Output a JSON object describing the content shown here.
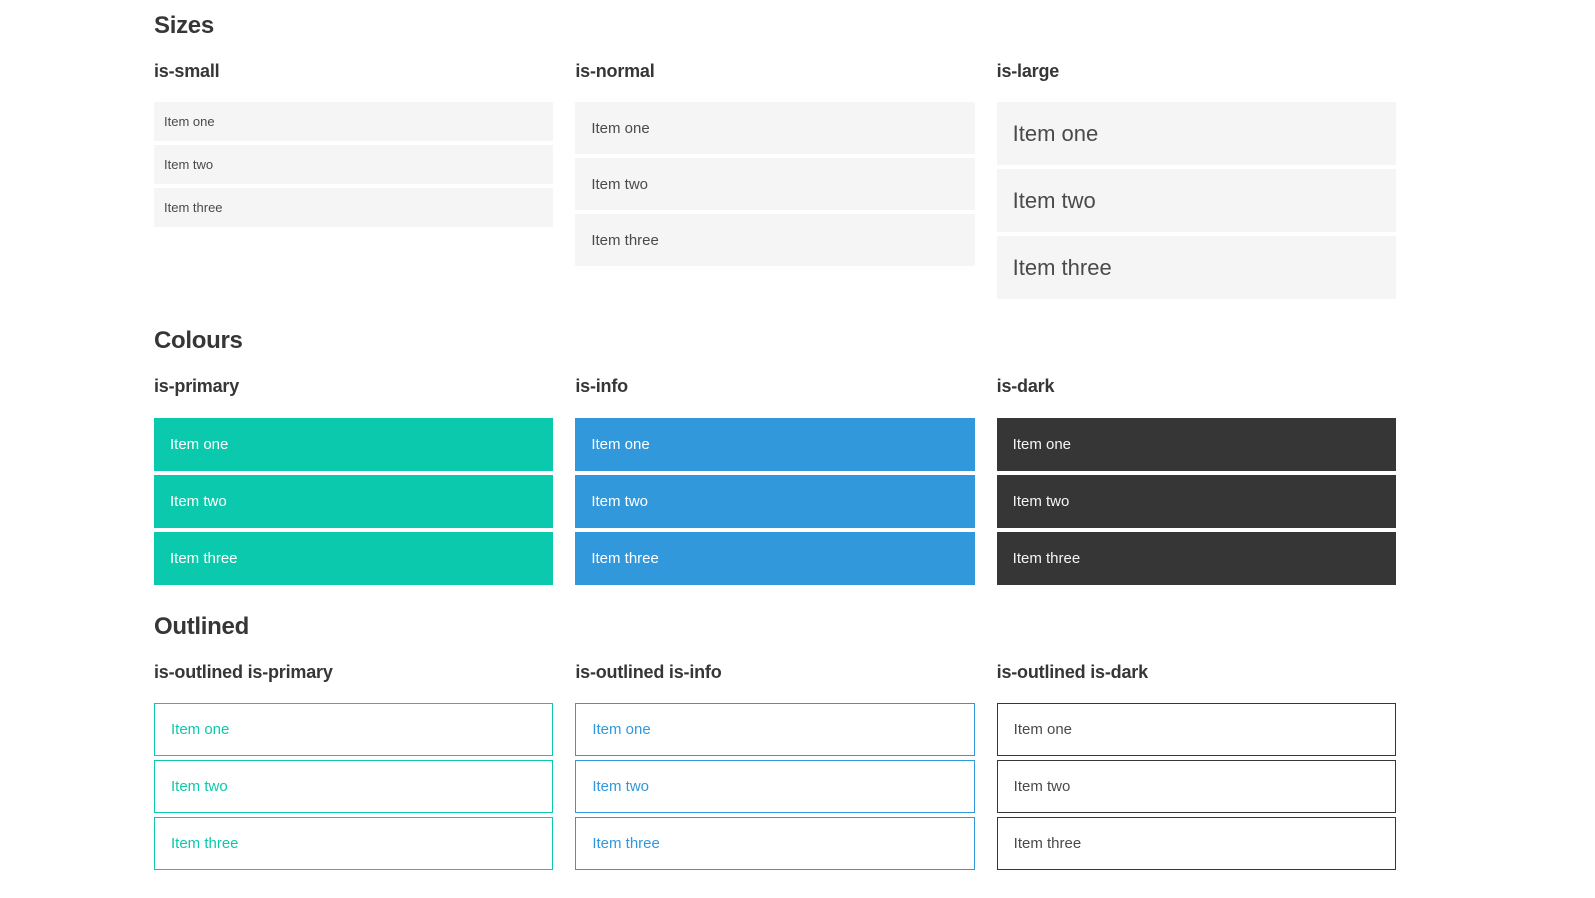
{
  "colors": {
    "primary": "#0bc9ac",
    "info": "#3298dc",
    "dark": "#363636",
    "heading": "#363636",
    "item-bg": "#f5f5f5",
    "item-text": "#4a4a4a",
    "item-text-inverse": "#ffffff",
    "dark-item-text": "#f5f5f5",
    "dark-outlined-text": "#4a4a4a"
  },
  "sections": [
    {
      "title": "Sizes",
      "groups": [
        {
          "label": "is-small",
          "items": [
            "Item one",
            "Item two",
            "Item three"
          ]
        },
        {
          "label": "is-normal",
          "items": [
            "Item one",
            "Item two",
            "Item three"
          ]
        },
        {
          "label": "is-large",
          "items": [
            "Item one",
            "Item two",
            "Item three"
          ]
        }
      ]
    },
    {
      "title": "Colours",
      "groups": [
        {
          "label": "is-primary",
          "items": [
            "Item one",
            "Item two",
            "Item three"
          ]
        },
        {
          "label": "is-info",
          "items": [
            "Item one",
            "Item two",
            "Item three"
          ]
        },
        {
          "label": "is-dark",
          "items": [
            "Item one",
            "Item two",
            "Item three"
          ]
        }
      ]
    },
    {
      "title": "Outlined",
      "groups": [
        {
          "label": "is-outlined is-primary",
          "items": [
            "Item one",
            "Item two",
            "Item three"
          ]
        },
        {
          "label": "is-outlined is-info",
          "items": [
            "Item one",
            "Item two",
            "Item three"
          ]
        },
        {
          "label": "is-outlined is-dark",
          "items": [
            "Item one",
            "Item two",
            "Item three"
          ]
        }
      ]
    }
  ]
}
